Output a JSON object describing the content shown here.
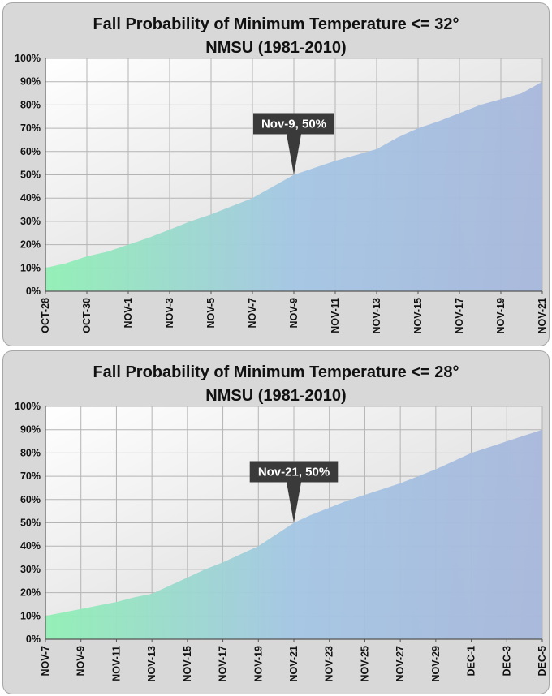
{
  "chart_data": [
    {
      "type": "area",
      "title": "Fall Probability of Minimum Temperature <= 32°",
      "subtitle": "NMSU (1981-2010)",
      "xlabel": "",
      "ylabel": "",
      "x": [
        "OCT-28",
        "OCT-29",
        "OCT-30",
        "OCT-31",
        "NOV-1",
        "NOV-2",
        "NOV-3",
        "NOV-4",
        "NOV-5",
        "NOV-6",
        "NOV-7",
        "NOV-8",
        "NOV-9",
        "NOV-10",
        "NOV-11",
        "NOV-12",
        "NOV-13",
        "NOV-14",
        "NOV-15",
        "NOV-16",
        "NOV-17",
        "NOV-18",
        "NOV-19",
        "NOV-20",
        "NOV-21"
      ],
      "x_tick_labels": [
        "OCT-28",
        "OCT-30",
        "NOV-1",
        "NOV-3",
        "NOV-5",
        "NOV-7",
        "NOV-9",
        "NOV-11",
        "NOV-13",
        "NOV-15",
        "NOV-17",
        "NOV-19",
        "NOV-21"
      ],
      "values": [
        10,
        12,
        15,
        17,
        20,
        23,
        26.5,
        30,
        33,
        36.5,
        40,
        45,
        50,
        53,
        56,
        58.5,
        61,
        66,
        70,
        73,
        76.5,
        80,
        82.5,
        85,
        90
      ],
      "y_tick_labels": [
        "0%",
        "10%",
        "20%",
        "30%",
        "40%",
        "50%",
        "60%",
        "70%",
        "80%",
        "90%",
        "100%"
      ],
      "ylim": [
        0,
        100
      ],
      "grid": true,
      "annotation": {
        "label": "Nov-9, 50%",
        "x": "NOV-9",
        "y": 50
      },
      "colors": {
        "start": "#90f0b4",
        "end": "#a8b8dc",
        "callout": "#3a3a3a"
      }
    },
    {
      "type": "area",
      "title": "Fall Probability of Minimum Temperature <= 28°",
      "subtitle": "NMSU (1981-2010)",
      "xlabel": "",
      "ylabel": "",
      "x": [
        "NOV-7",
        "NOV-8",
        "NOV-9",
        "NOV-10",
        "NOV-11",
        "NOV-12",
        "NOV-13",
        "NOV-14",
        "NOV-15",
        "NOV-16",
        "NOV-17",
        "NOV-18",
        "NOV-19",
        "NOV-20",
        "NOV-21",
        "NOV-22",
        "NOV-23",
        "NOV-24",
        "NOV-25",
        "NOV-26",
        "NOV-27",
        "NOV-28",
        "NOV-29",
        "NOV-30",
        "DEC-1",
        "DEC-2",
        "DEC-3",
        "DEC-4",
        "DEC-5"
      ],
      "x_tick_labels": [
        "NOV-7",
        "NOV-9",
        "NOV-11",
        "NOV-13",
        "NOV-15",
        "NOV-17",
        "NOV-19",
        "NOV-21",
        "NOV-23",
        "NOV-25",
        "NOV-27",
        "NOV-29",
        "DEC-1",
        "DEC-3",
        "DEC-5"
      ],
      "values": [
        10,
        11.5,
        13,
        14.5,
        16,
        18,
        19.5,
        23,
        26.5,
        30,
        33,
        36.5,
        40,
        45,
        50,
        53.5,
        56.5,
        59.5,
        62,
        64.5,
        67,
        70,
        73,
        76.5,
        80,
        82.5,
        85,
        87.5,
        90
      ],
      "y_tick_labels": [
        "0%",
        "10%",
        "20%",
        "30%",
        "40%",
        "50%",
        "60%",
        "70%",
        "80%",
        "90%",
        "100%"
      ],
      "ylim": [
        0,
        100
      ],
      "grid": true,
      "annotation": {
        "label": "Nov-21, 50%",
        "x": "NOV-21",
        "y": 50
      },
      "colors": {
        "start": "#90f0b4",
        "end": "#a8b8dc",
        "callout": "#3a3a3a"
      }
    }
  ]
}
